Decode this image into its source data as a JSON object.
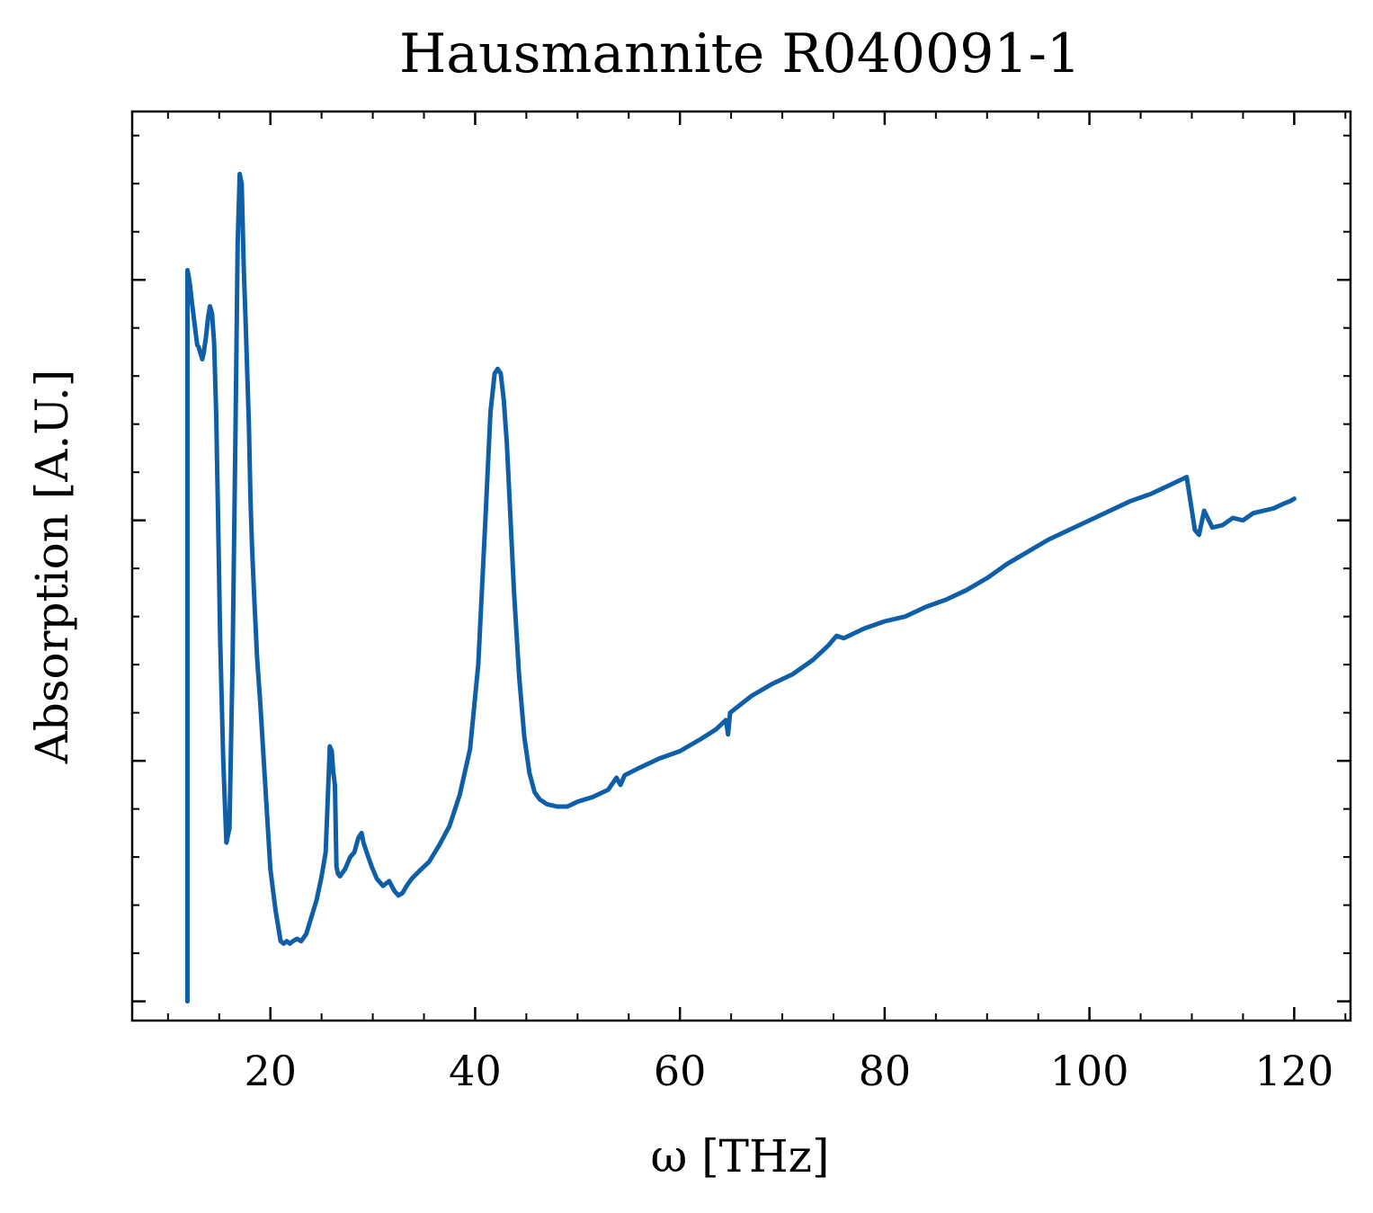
{
  "chart_data": {
    "type": "line",
    "title": "Hausmannite R040091-1",
    "xlabel": "ω [THz]",
    "ylabel": "Absorption [A.U.]",
    "xlim": [
      6.5,
      125.5
    ],
    "ylim": [
      0.92,
      4.7
    ],
    "xticks": [
      20,
      40,
      60,
      80,
      100,
      120
    ],
    "xtick_labels": [
      "20",
      "40",
      "60",
      "80",
      "100",
      "120"
    ],
    "yticks": [
      1,
      2,
      3,
      4
    ],
    "ytick_labels": [
      "",
      "",
      "",
      ""
    ],
    "y_minor_step": 0.2,
    "x_minor_step": 5,
    "grid": false,
    "legend": "none",
    "line_color": "#0f5ea8",
    "series": [
      {
        "x": [
          11.9,
          11.9,
          12.0,
          12.15,
          12.3,
          12.5,
          12.7,
          12.85,
          13.0,
          13.2,
          13.35,
          13.5,
          13.7,
          13.9,
          14.1,
          14.3,
          14.5,
          14.7,
          14.9,
          15.1,
          15.4,
          15.7,
          16.0,
          16.3,
          16.6,
          16.8,
          17.0,
          17.2,
          17.4,
          17.6,
          17.75,
          17.9,
          18.05,
          18.2,
          18.4,
          18.7,
          19.0,
          19.5,
          20.0,
          20.5,
          21.0,
          21.3,
          21.6,
          21.9,
          22.2,
          22.6,
          23.0,
          23.5,
          24.0,
          24.5,
          25.0,
          25.4,
          25.8,
          26.0,
          26.15,
          26.3,
          26.45,
          26.6,
          26.8,
          27.3,
          27.8,
          28.2,
          28.6,
          28.9,
          29.1,
          29.4,
          29.9,
          30.4,
          31.0,
          31.6,
          32.1,
          32.5,
          32.9,
          33.3,
          33.8,
          34.5,
          35.5,
          36.5,
          37.5,
          38.5,
          39.5,
          40.3,
          41.0,
          41.5,
          41.9,
          42.2,
          42.5,
          42.8,
          43.1,
          43.4,
          43.8,
          44.3,
          44.8,
          45.3,
          45.8,
          46.3,
          47.0,
          48.0,
          49.0,
          50.0,
          51.5,
          53.0,
          53.8,
          54.2,
          54.6,
          56.0,
          58.0,
          60.0,
          62.0,
          63.5,
          64.5,
          64.7,
          64.9,
          65.5,
          67.0,
          69.0,
          71.0,
          73.0,
          74.5,
          75.3,
          76.0,
          78.0,
          80.0,
          82.0,
          84.0,
          86.0,
          88.0,
          90.0,
          92.0,
          94.0,
          96.0,
          98.0,
          100.0,
          102.0,
          104.0,
          106.0,
          108.0,
          109.5,
          110.3,
          110.7,
          111.2,
          112.0,
          113.0,
          114.0,
          115.0,
          116.0,
          117.0,
          118.0,
          119.0,
          119.6,
          120.0
        ],
        "y": [
          1.0,
          4.04,
          4.02,
          3.98,
          3.92,
          3.85,
          3.78,
          3.73,
          3.72,
          3.69,
          3.67,
          3.7,
          3.76,
          3.84,
          3.89,
          3.86,
          3.74,
          3.45,
          3.0,
          2.5,
          2.0,
          1.66,
          1.72,
          2.4,
          3.4,
          4.15,
          4.44,
          4.4,
          4.05,
          3.8,
          3.6,
          3.4,
          3.1,
          2.9,
          2.7,
          2.43,
          2.25,
          1.9,
          1.55,
          1.38,
          1.25,
          1.24,
          1.25,
          1.24,
          1.25,
          1.26,
          1.25,
          1.28,
          1.35,
          1.42,
          1.52,
          1.62,
          2.06,
          2.04,
          1.95,
          1.9,
          1.56,
          1.53,
          1.52,
          1.55,
          1.6,
          1.62,
          1.68,
          1.7,
          1.66,
          1.62,
          1.56,
          1.51,
          1.48,
          1.5,
          1.46,
          1.44,
          1.45,
          1.48,
          1.51,
          1.54,
          1.58,
          1.65,
          1.73,
          1.86,
          2.05,
          2.4,
          3.0,
          3.45,
          3.61,
          3.63,
          3.61,
          3.5,
          3.32,
          3.05,
          2.7,
          2.35,
          2.1,
          1.95,
          1.87,
          1.84,
          1.82,
          1.81,
          1.81,
          1.83,
          1.85,
          1.88,
          1.93,
          1.9,
          1.94,
          1.97,
          2.01,
          2.04,
          2.09,
          2.13,
          2.17,
          2.11,
          2.2,
          2.22,
          2.27,
          2.32,
          2.36,
          2.42,
          2.48,
          2.52,
          2.51,
          2.55,
          2.58,
          2.6,
          2.64,
          2.67,
          2.71,
          2.76,
          2.82,
          2.87,
          2.92,
          2.96,
          3.0,
          3.04,
          3.08,
          3.11,
          3.15,
          3.18,
          2.96,
          2.94,
          3.04,
          2.97,
          2.98,
          3.01,
          3.0,
          3.03,
          3.04,
          3.05,
          3.07,
          3.08,
          3.09
        ]
      }
    ]
  }
}
